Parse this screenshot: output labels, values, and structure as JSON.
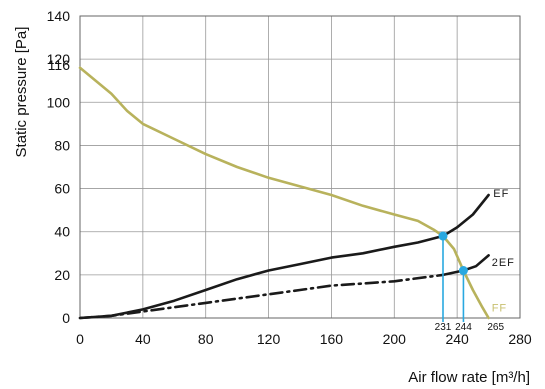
{
  "chart_data": {
    "type": "line",
    "ylabel": "Static pressure [Pa]",
    "xlabel": "Air flow rate [m³/h]",
    "xlim": [
      0,
      280
    ],
    "ylim": [
      0,
      140
    ],
    "x_ticks": [
      "0",
      "40",
      "80",
      "120",
      "160",
      "200",
      "240",
      "280"
    ],
    "y_ticks": [
      "0",
      "20",
      "40",
      "60",
      "80",
      "100",
      "120",
      "140"
    ],
    "y_extra_tick": "116",
    "y_extra_tick_value": 116,
    "grid": true,
    "series": [
      {
        "name": "FF",
        "style": "solid",
        "color": "#b8b25c",
        "points": [
          [
            0,
            116
          ],
          [
            10,
            110
          ],
          [
            20,
            104
          ],
          [
            30,
            96
          ],
          [
            40,
            90
          ],
          [
            60,
            83
          ],
          [
            80,
            76
          ],
          [
            100,
            70
          ],
          [
            120,
            65
          ],
          [
            140,
            61
          ],
          [
            160,
            57
          ],
          [
            180,
            52
          ],
          [
            200,
            48
          ],
          [
            215,
            45
          ],
          [
            225,
            41
          ],
          [
            231,
            38
          ],
          [
            238,
            32
          ],
          [
            244,
            22
          ],
          [
            250,
            13
          ],
          [
            256,
            5
          ],
          [
            260,
            0
          ]
        ]
      },
      {
        "name": "EF",
        "style": "solid",
        "color": "#1a1a1a",
        "points": [
          [
            0,
            0
          ],
          [
            20,
            1
          ],
          [
            40,
            4
          ],
          [
            60,
            8
          ],
          [
            80,
            13
          ],
          [
            100,
            18
          ],
          [
            120,
            22
          ],
          [
            140,
            25
          ],
          [
            160,
            28
          ],
          [
            180,
            30
          ],
          [
            200,
            33
          ],
          [
            215,
            35
          ],
          [
            231,
            38
          ],
          [
            240,
            42
          ],
          [
            250,
            48
          ],
          [
            260,
            57
          ]
        ]
      },
      {
        "name": "2EF",
        "style": "solid",
        "color": "#1a1a1a",
        "points": [
          [
            231,
            20
          ],
          [
            244,
            22
          ],
          [
            252,
            24
          ],
          [
            260,
            29
          ]
        ]
      },
      {
        "name": "",
        "style": "dashdot",
        "color": "#1a1a1a",
        "points": [
          [
            0,
            0
          ],
          [
            20,
            1
          ],
          [
            40,
            3
          ],
          [
            60,
            5
          ],
          [
            80,
            7
          ],
          [
            100,
            9
          ],
          [
            120,
            11
          ],
          [
            140,
            13
          ],
          [
            160,
            15
          ],
          [
            180,
            16
          ],
          [
            200,
            17
          ],
          [
            231,
            20
          ]
        ]
      }
    ],
    "curve_labels": [
      {
        "text": "EF",
        "x": 263,
        "y": 56,
        "color": "#1a1a1a"
      },
      {
        "text": "2EF",
        "x": 262,
        "y": 24,
        "color": "#1a1a1a"
      },
      {
        "text": "FF",
        "x": 262,
        "y": 3,
        "color": "#c8c070"
      }
    ],
    "operating_points": [
      {
        "x": 231,
        "y": 38,
        "label": "231"
      },
      {
        "x": 244,
        "y": 22,
        "label": "244"
      }
    ],
    "extra_x_label": {
      "text": "265",
      "x": 262
    },
    "colors": {
      "marker": "#29a8e0",
      "grid": "#999999",
      "plot_border": "#666666"
    }
  }
}
